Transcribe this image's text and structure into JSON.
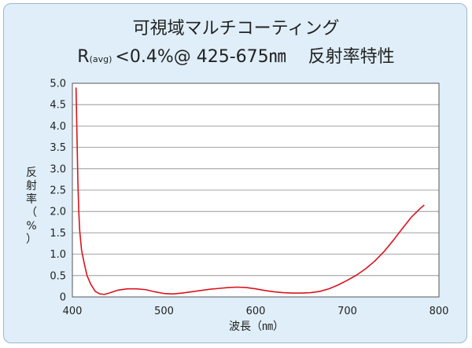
{
  "title": {
    "line1": "可視域マルチコーティング",
    "r_symbol": "R",
    "r_sub": "(avg)",
    "spec": "<0.4%@ 425-675㎚",
    "property": "反射率特性"
  },
  "colors": {
    "frame_bg": "#dfeef8",
    "plot_bg": "#ffffff",
    "curve": "#d9141e",
    "grid": "#888888"
  },
  "chart_data": {
    "type": "line",
    "ylabel": "反射率（%）",
    "xlabel": "波長（㎚）",
    "xlim": [
      400,
      800
    ],
    "ylim": [
      0,
      5
    ],
    "xticks": [
      "400",
      "500",
      "600",
      "700",
      "800"
    ],
    "yticks": [
      "0",
      "0.5",
      "1.0",
      "1.5",
      "2.0",
      "2.5",
      "3.0",
      "3.5",
      "4.0",
      "4.5",
      "5.0"
    ],
    "grid": "horizontal",
    "series": [
      {
        "x": [
          404,
          405,
          406,
          407,
          408,
          410,
          413,
          416,
          420,
          425,
          430,
          435,
          440,
          450,
          460,
          470,
          480,
          490,
          500,
          510,
          520,
          530,
          540,
          550,
          560,
          570,
          580,
          590,
          600,
          610,
          620,
          630,
          640,
          650,
          660,
          670,
          680,
          690,
          700,
          710,
          720,
          730,
          740,
          750,
          760,
          770,
          780,
          784
        ],
        "y": [
          4.9,
          3.8,
          2.7,
          2.0,
          1.55,
          1.1,
          0.78,
          0.5,
          0.3,
          0.13,
          0.07,
          0.06,
          0.09,
          0.16,
          0.19,
          0.19,
          0.17,
          0.12,
          0.08,
          0.07,
          0.09,
          0.12,
          0.15,
          0.18,
          0.2,
          0.22,
          0.23,
          0.22,
          0.19,
          0.15,
          0.12,
          0.1,
          0.09,
          0.09,
          0.1,
          0.13,
          0.19,
          0.28,
          0.39,
          0.51,
          0.66,
          0.84,
          1.06,
          1.32,
          1.6,
          1.87,
          2.08,
          2.15
        ]
      }
    ]
  }
}
